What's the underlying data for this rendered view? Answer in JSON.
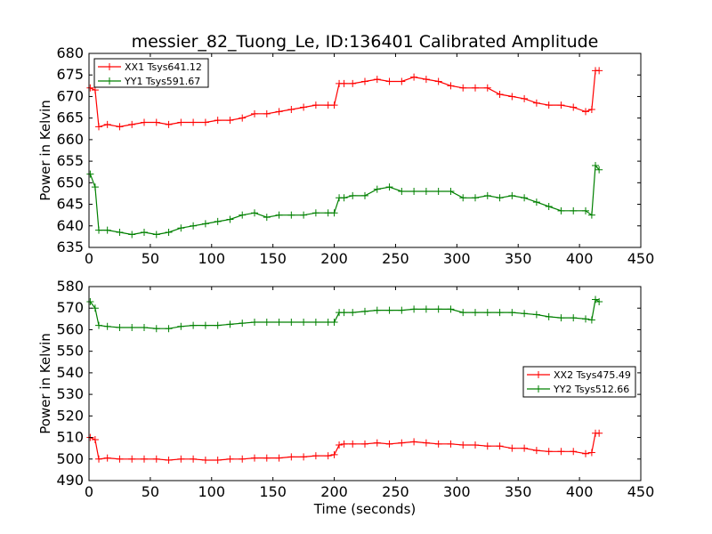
{
  "figure": {
    "title": "messier_82_Tuong_Le, ID:136401 Calibrated Amplitude"
  },
  "colors": {
    "xx": "#ff0000",
    "yy": "#008000"
  },
  "chart_data": [
    {
      "type": "line",
      "title": "messier_82_Tuong_Le, ID:136401 Calibrated Amplitude",
      "xlabel": "",
      "ylabel": "Power in Kelvin",
      "xlim": [
        0,
        450
      ],
      "ylim": [
        635,
        680
      ],
      "xticks": [
        0,
        50,
        100,
        150,
        200,
        250,
        300,
        350,
        400,
        450
      ],
      "yticks": [
        635,
        640,
        645,
        650,
        655,
        660,
        665,
        670,
        675,
        680
      ],
      "grid": false,
      "legend_position": "top-left",
      "marker": "+",
      "series": [
        {
          "name": "XX1 Tsys641.12",
          "color": "#ff0000",
          "x": [
            1,
            5,
            8,
            15,
            25,
            35,
            45,
            55,
            65,
            75,
            85,
            95,
            105,
            115,
            125,
            135,
            145,
            155,
            165,
            175,
            185,
            195,
            200,
            204,
            208,
            215,
            225,
            235,
            245,
            255,
            265,
            275,
            285,
            295,
            305,
            315,
            325,
            335,
            345,
            355,
            365,
            375,
            385,
            395,
            405,
            410,
            413,
            416
          ],
          "y": [
            672,
            671.5,
            663,
            663.5,
            663,
            663.5,
            664,
            664,
            663.5,
            664,
            664,
            664,
            664.5,
            664.5,
            665,
            666,
            666,
            666.5,
            667,
            667.5,
            668,
            668,
            668,
            673,
            673,
            673,
            673.5,
            674,
            673.5,
            673.5,
            674.5,
            674,
            673.5,
            672.5,
            672,
            672,
            672,
            670.5,
            670,
            669.5,
            668.5,
            668,
            668,
            667.5,
            666.5,
            667,
            676,
            676
          ]
        },
        {
          "name": "YY1 Tsys591.67",
          "color": "#008000",
          "x": [
            1,
            5,
            8,
            15,
            25,
            35,
            45,
            55,
            65,
            75,
            85,
            95,
            105,
            115,
            125,
            135,
            145,
            155,
            165,
            175,
            185,
            195,
            200,
            204,
            208,
            215,
            225,
            235,
            245,
            255,
            265,
            275,
            285,
            295,
            305,
            315,
            325,
            335,
            345,
            355,
            365,
            375,
            385,
            395,
            405,
            410,
            413,
            416
          ],
          "y": [
            652,
            649,
            639,
            639,
            638.5,
            638,
            638.5,
            638,
            638.5,
            639.5,
            640,
            640.5,
            641,
            641.5,
            642.5,
            643,
            642,
            642.5,
            642.5,
            642.5,
            643,
            643,
            643,
            646.5,
            646.5,
            647,
            647,
            648.5,
            649,
            648,
            648,
            648,
            648,
            648,
            646.5,
            646.5,
            647,
            646.5,
            647,
            646.5,
            645.5,
            644.5,
            643.5,
            643.5,
            643.5,
            642.5,
            654,
            653
          ]
        }
      ]
    },
    {
      "type": "line",
      "title": "",
      "xlabel": "Time (seconds)",
      "ylabel": "Power in Kelvin",
      "xlim": [
        0,
        450
      ],
      "ylim": [
        490,
        580
      ],
      "xticks": [
        0,
        50,
        100,
        150,
        200,
        250,
        300,
        350,
        400,
        450
      ],
      "yticks": [
        490,
        500,
        510,
        520,
        530,
        540,
        550,
        560,
        570,
        580
      ],
      "grid": false,
      "legend_position": "center-right",
      "marker": "+",
      "series": [
        {
          "name": "XX2 Tsys475.49",
          "color": "#ff0000",
          "x": [
            1,
            5,
            8,
            15,
            25,
            35,
            45,
            55,
            65,
            75,
            85,
            95,
            105,
            115,
            125,
            135,
            145,
            155,
            165,
            175,
            185,
            195,
            200,
            204,
            208,
            215,
            225,
            235,
            245,
            255,
            265,
            275,
            285,
            295,
            305,
            315,
            325,
            335,
            345,
            355,
            365,
            375,
            385,
            395,
            405,
            410,
            413,
            416
          ],
          "y": [
            510,
            509,
            500,
            500.5,
            500,
            500,
            500,
            500,
            499.5,
            500,
            500,
            499.5,
            499.5,
            500,
            500,
            500.5,
            500.5,
            500.5,
            501,
            501,
            501.5,
            501.5,
            502,
            506.5,
            507,
            507,
            507,
            507.5,
            507,
            507.5,
            508,
            507.5,
            507,
            507,
            506.5,
            506.5,
            506,
            506,
            505,
            505,
            504,
            503.5,
            503.5,
            503.5,
            502.5,
            503,
            512,
            512
          ]
        },
        {
          "name": "YY2 Tsys512.66",
          "color": "#008000",
          "x": [
            1,
            5,
            8,
            15,
            25,
            35,
            45,
            55,
            65,
            75,
            85,
            95,
            105,
            115,
            125,
            135,
            145,
            155,
            165,
            175,
            185,
            195,
            200,
            204,
            208,
            215,
            225,
            235,
            245,
            255,
            265,
            275,
            285,
            295,
            305,
            315,
            325,
            335,
            345,
            355,
            365,
            375,
            385,
            395,
            405,
            410,
            413,
            416
          ],
          "y": [
            573,
            570,
            562,
            561.5,
            561,
            561,
            561,
            560.5,
            560.5,
            561.5,
            562,
            562,
            562,
            562.5,
            563,
            563.5,
            563.5,
            563.5,
            563.5,
            563.5,
            563.5,
            563.5,
            563.5,
            568,
            568,
            568,
            568.5,
            569,
            569,
            569,
            569.5,
            569.5,
            569.5,
            569.5,
            568,
            568,
            568,
            568,
            568,
            567.5,
            567,
            566,
            565.5,
            565.5,
            565,
            564.5,
            574,
            573
          ]
        }
      ]
    }
  ]
}
